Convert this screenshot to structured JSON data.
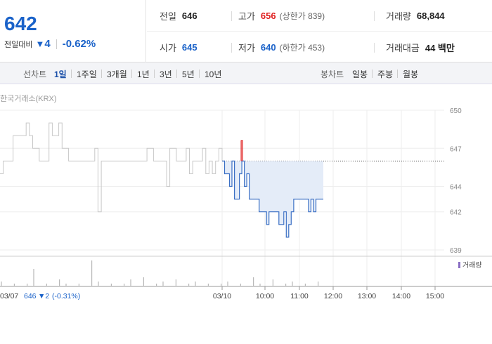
{
  "header": {
    "current_price": "642",
    "change_label": "전일대비",
    "change_icon": "down-triangle-icon",
    "change_symbol": "▼",
    "change_amount": "4",
    "change_percent": "-0.62%",
    "stats": {
      "prev_close_label": "전일",
      "prev_close": "646",
      "high_label": "고가",
      "high": "656",
      "upper_limit": "(상한가 839)",
      "volume_label": "거래량",
      "volume": "68,844",
      "open_label": "시가",
      "open": "645",
      "low_label": "저가",
      "low": "640",
      "lower_limit": "(하한가 453)",
      "amount_label": "거래대금",
      "amount": "44 백만"
    }
  },
  "tabs": {
    "line_label": "선차트",
    "line_periods": [
      "1일",
      "1주일",
      "3개월",
      "1년",
      "3년",
      "5년",
      "10년"
    ],
    "active_period": "1일",
    "candle_label": "봉차트",
    "candle_periods": [
      "일봉",
      "주봉",
      "월봉"
    ]
  },
  "chart": {
    "market": "한국거래소(KRX)",
    "volume_legend": "거래량",
    "y_ticks": [
      "650",
      "647",
      "644",
      "642",
      "639"
    ],
    "x_ticks": [
      "03/10",
      "10:00",
      "11:00",
      "12:00",
      "13:00",
      "14:00",
      "15:00"
    ],
    "prev_day_summary": {
      "date": "03/07",
      "price": "646",
      "symbol": "▼",
      "change": "2",
      "percent": "(-0.31%)"
    },
    "colors": {
      "prev_line": "#c8c8c8",
      "today_line": "#3a6fc4",
      "area_fill": "#e4ecf8",
      "up_spike": "#e02020",
      "baseline": "#555"
    }
  },
  "chart_data": {
    "type": "line",
    "title": "",
    "xlabel": "",
    "ylabel": "",
    "ylim": [
      639,
      650
    ],
    "baseline": 646,
    "series": [
      {
        "values": [
          645,
          646,
          646,
          646,
          648,
          648,
          648,
          648,
          649,
          648,
          647,
          647,
          646,
          646,
          646,
          649,
          648,
          648,
          649,
          647,
          647,
          646,
          646,
          646,
          646,
          646,
          646,
          646,
          646,
          647,
          642,
          646,
          646,
          646,
          646,
          646,
          646,
          646,
          646,
          646,
          646,
          646,
          646,
          646,
          646,
          647,
          647,
          646,
          646,
          646,
          646,
          644,
          647,
          647,
          646,
          646,
          646,
          647,
          645,
          646,
          646,
          646,
          647,
          645,
          646,
          645,
          646,
          647,
          646
        ]
      },
      {
        "values": [
          646,
          645,
          645,
          644,
          646,
          643,
          643,
          645,
          656,
          644,
          645,
          643,
          643,
          643,
          643,
          642,
          642,
          642,
          641,
          642,
          642,
          642,
          642,
          641,
          641,
          642,
          640,
          641,
          642,
          643,
          643,
          643,
          643,
          643,
          643,
          642,
          643,
          642,
          643,
          643,
          643,
          643
        ]
      }
    ],
    "volume_data": [
      2,
      1,
      1,
      8,
      1,
      3,
      1,
      1,
      12,
      2,
      1,
      1,
      3,
      4,
      1,
      2,
      3,
      1,
      2,
      1,
      1,
      2,
      1,
      4,
      1,
      3,
      1,
      2,
      1,
      2
    ]
  }
}
